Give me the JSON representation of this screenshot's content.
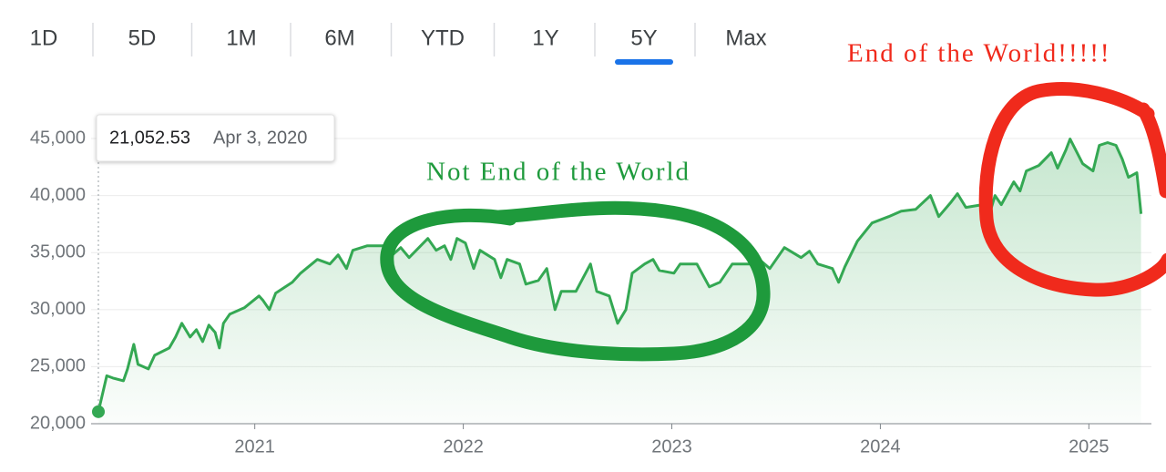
{
  "range_tabs": {
    "items": [
      "1D",
      "5D",
      "1M",
      "6M",
      "YTD",
      "1Y",
      "5Y",
      "Max"
    ],
    "selected": "5Y"
  },
  "chart_data": {
    "type": "line",
    "color": "#34a853",
    "tooltip": {
      "value": "21,052.53",
      "date": "Apr 3, 2020"
    },
    "annotations": [
      {
        "text": "Not End of the World",
        "color": "#1e9a3c"
      },
      {
        "text": "End of the World!!!!!",
        "color": "#f02a1c"
      }
    ],
    "x": [
      2020.25,
      2020.29,
      2020.32,
      2020.37,
      2020.39,
      2020.42,
      2020.44,
      2020.49,
      2020.52,
      2020.59,
      2020.62,
      2020.65,
      2020.69,
      2020.72,
      2020.75,
      2020.78,
      2020.81,
      2020.83,
      2020.85,
      2020.88,
      2020.95,
      2021.02,
      2021.04,
      2021.07,
      2021.1,
      2021.18,
      2021.22,
      2021.3,
      2021.36,
      2021.4,
      2021.44,
      2021.47,
      2021.54,
      2021.62,
      2021.66,
      2021.7,
      2021.74,
      2021.83,
      2021.87,
      2021.91,
      2021.94,
      2021.97,
      2022.01,
      2022.05,
      2022.08,
      2022.15,
      2022.18,
      2022.21,
      2022.27,
      2022.3,
      2022.36,
      2022.4,
      2022.44,
      2022.47,
      2022.54,
      2022.61,
      2022.64,
      2022.7,
      2022.74,
      2022.78,
      2022.81,
      2022.87,
      2022.91,
      2022.94,
      2023.01,
      2023.04,
      2023.12,
      2023.18,
      2023.23,
      2023.29,
      2023.38,
      2023.42,
      2023.47,
      2023.54,
      2023.62,
      2023.66,
      2023.7,
      2023.77,
      2023.8,
      2023.83,
      2023.89,
      2023.96,
      2024.04,
      2024.1,
      2024.17,
      2024.24,
      2024.28,
      2024.34,
      2024.37,
      2024.41,
      2024.49,
      2024.52,
      2024.55,
      2024.58,
      2024.64,
      2024.67,
      2024.7,
      2024.76,
      2024.82,
      2024.85,
      2024.89,
      2024.91,
      2024.97,
      2025.02,
      2025.05,
      2025.09,
      2025.13,
      2025.16,
      2025.19,
      2025.23,
      2025.25
    ],
    "values": [
      21052.53,
      24200,
      24000,
      23760,
      24800,
      26960,
      25200,
      24800,
      26000,
      26640,
      27600,
      28800,
      27600,
      28240,
      27200,
      28640,
      28000,
      26640,
      28800,
      29600,
      30160,
      31200,
      30800,
      30000,
      31440,
      32400,
      33200,
      34400,
      34000,
      34800,
      33600,
      35200,
      35600,
      35600,
      34800,
      35440,
      34560,
      36240,
      35200,
      35600,
      34400,
      36240,
      35840,
      33600,
      35200,
      34400,
      32800,
      34400,
      34000,
      32240,
      32560,
      33600,
      30000,
      31600,
      31600,
      34000,
      31600,
      31200,
      28800,
      30000,
      33200,
      34000,
      34400,
      33440,
      33200,
      34000,
      34000,
      32000,
      32400,
      34000,
      34000,
      34400,
      33600,
      35440,
      34560,
      35120,
      34000,
      33600,
      32400,
      33760,
      36000,
      37600,
      38160,
      38640,
      38800,
      40000,
      38160,
      39440,
      40160,
      38960,
      39200,
      38160,
      40000,
      39200,
      41200,
      40400,
      42160,
      42640,
      43760,
      42400,
      44000,
      44960,
      42800,
      42160,
      44400,
      44640,
      44400,
      43200,
      41600,
      42000,
      38400
    ],
    "xlim": [
      2020.25,
      2025.3
    ],
    "xticks": [
      2021,
      2022,
      2023,
      2024,
      2025
    ],
    "ylim": [
      20000,
      47000
    ],
    "yticks": [
      {
        "value": 20000,
        "label": "20,000"
      },
      {
        "value": 25000,
        "label": "25,000"
      },
      {
        "value": 30000,
        "label": "30,000"
      },
      {
        "value": 35000,
        "label": "35,000"
      },
      {
        "value": 40000,
        "label": "40,000"
      },
      {
        "value": 45000,
        "label": "45,000"
      }
    ],
    "grid": true
  }
}
